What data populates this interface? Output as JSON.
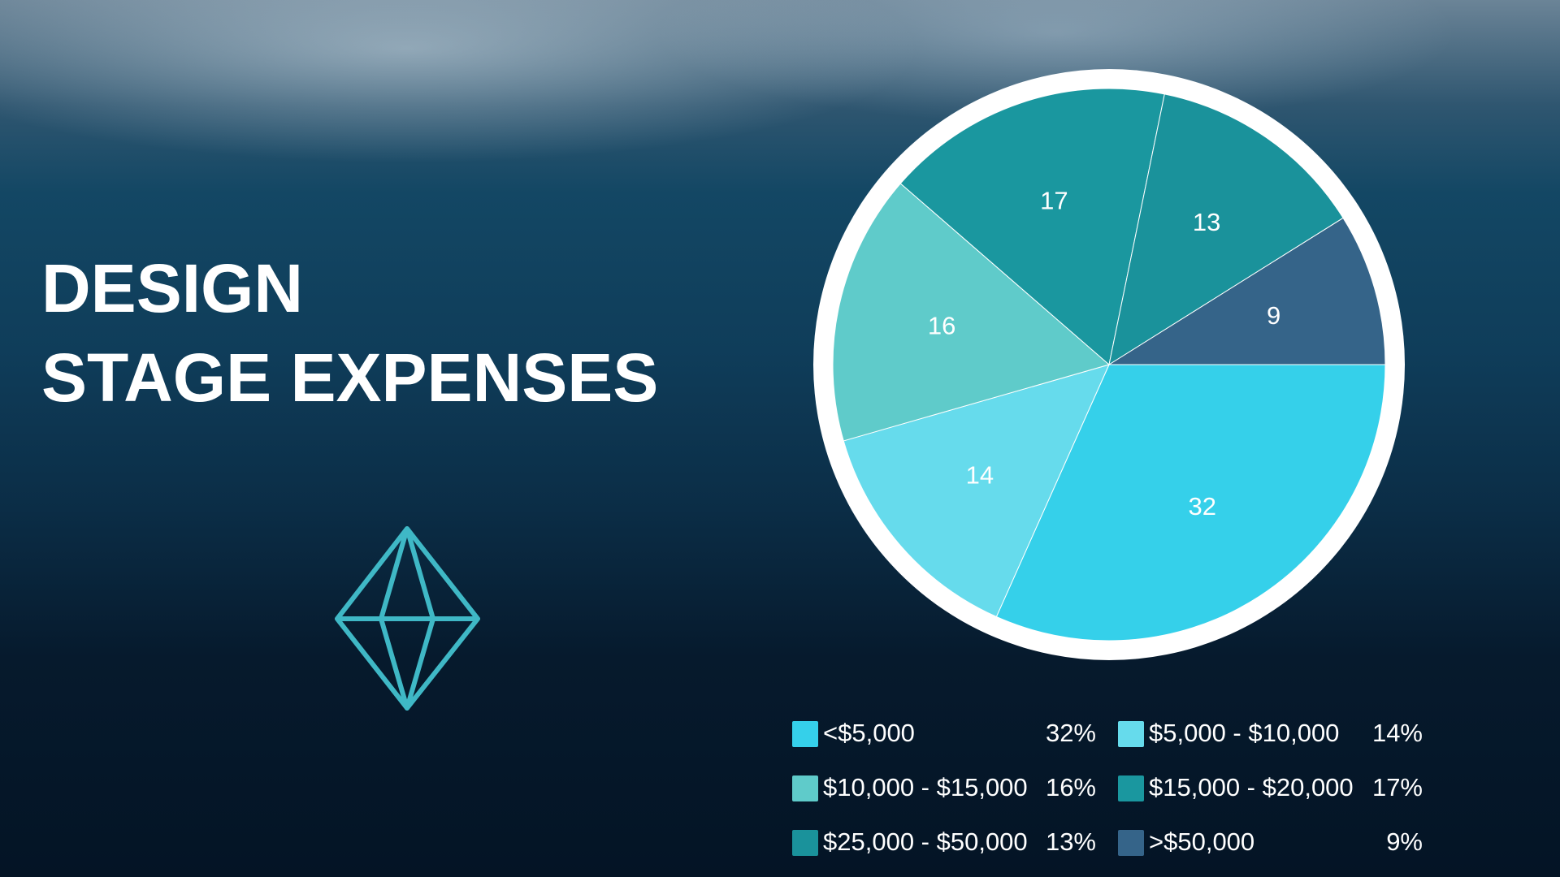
{
  "chart_data": {
    "type": "pie",
    "title": "DESIGN\nSTAGE EXPENSES",
    "categories": [
      "<$5,000",
      "$5,000 - $10,000",
      "$10,000 - $15,000",
      "$15,000 - $20,000",
      "$25,000 - $50,000",
      ">$50,000"
    ],
    "values": [
      32,
      14,
      16,
      17,
      13,
      9
    ],
    "value_labels": [
      "32%",
      "14%",
      "16%",
      "17%",
      "13%",
      "9%"
    ],
    "colors": [
      "#35d0ea",
      "#66dbec",
      "#5fcbca",
      "#1a979f",
      "#1a929b",
      "#356489"
    ]
  }
}
